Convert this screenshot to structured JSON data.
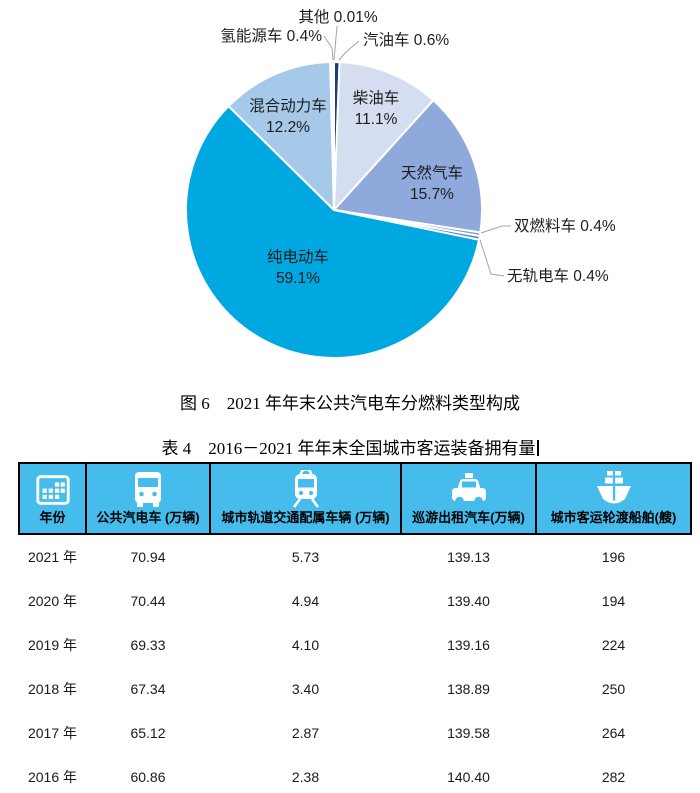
{
  "figure": {
    "caption": "图 6　2021 年年末公共汽电车分燃料类型构成"
  },
  "chart_data": {
    "type": "pie",
    "title": "2021年年末公共汽电车分燃料类型构成",
    "unit": "%",
    "legend_position": "none",
    "direction": "clockwise",
    "start_angle_deg": 0,
    "slices": [
      {
        "label": "汽油车",
        "value": 0.6,
        "color": "#1F3D73"
      },
      {
        "label": "柴油车",
        "value": 11.1,
        "color": "#D5DDF1"
      },
      {
        "label": "天然气车",
        "value": 15.7,
        "color": "#8FA9DC"
      },
      {
        "label": "双燃料车",
        "value": 0.4,
        "color": "#7FA0D6"
      },
      {
        "label": "无轨电车",
        "value": 0.4,
        "color": "#4A7CC1"
      },
      {
        "label": "纯电动车",
        "value": 59.1,
        "color": "#00A8E2"
      },
      {
        "label": "混合动力车",
        "value": 12.2,
        "color": "#A6C9EA"
      },
      {
        "label": "氢能源车",
        "value": 0.4,
        "color": "#F4F6FA"
      },
      {
        "label": "其他",
        "value": 0.01,
        "color": "#16325C"
      }
    ],
    "labels": {
      "qita": "其他 0.01%",
      "qingnengyuan": "氢能源车 0.4%",
      "qiyou": "汽油车 0.6%",
      "chaiyou_1": "柴油车",
      "chaiyou_2": "11.1%",
      "hunhe_1": "混合动力车",
      "hunhe_2": "12.2%",
      "tianranqi_1": "天然气车",
      "tianranqi_2": "15.7%",
      "shuangranliao": "双燃料车 0.4%",
      "wugui": "无轨电车 0.4%",
      "chundiandong_1": "纯电动车",
      "chundiandong_2": "59.1%"
    }
  },
  "table": {
    "title": "表 4　2016－2021 年年末全国城市客运装备拥有量",
    "header_bg": "#46BCEC",
    "columns": [
      {
        "label": "年份",
        "icon": "calendar-icon"
      },
      {
        "label": "公共汽电车 (万辆)",
        "icon": "bus-icon"
      },
      {
        "label": "城市轨道交通配属车辆 (万辆)",
        "icon": "metro-icon"
      },
      {
        "label": "巡游出租汽车(万辆)",
        "icon": "taxi-icon"
      },
      {
        "label": "城市客运轮渡船舶(艘)",
        "icon": "ship-icon"
      }
    ],
    "rows": [
      [
        "2021 年",
        "70.94",
        "5.73",
        "139.13",
        "196"
      ],
      [
        "2020 年",
        "70.44",
        "4.94",
        "139.40",
        "194"
      ],
      [
        "2019 年",
        "69.33",
        "4.10",
        "139.16",
        "224"
      ],
      [
        "2018 年",
        "67.34",
        "3.40",
        "138.89",
        "250"
      ],
      [
        "2017 年",
        "65.12",
        "2.87",
        "139.58",
        "264"
      ],
      [
        "2016 年",
        "60.86",
        "2.38",
        "140.40",
        "282"
      ]
    ]
  }
}
